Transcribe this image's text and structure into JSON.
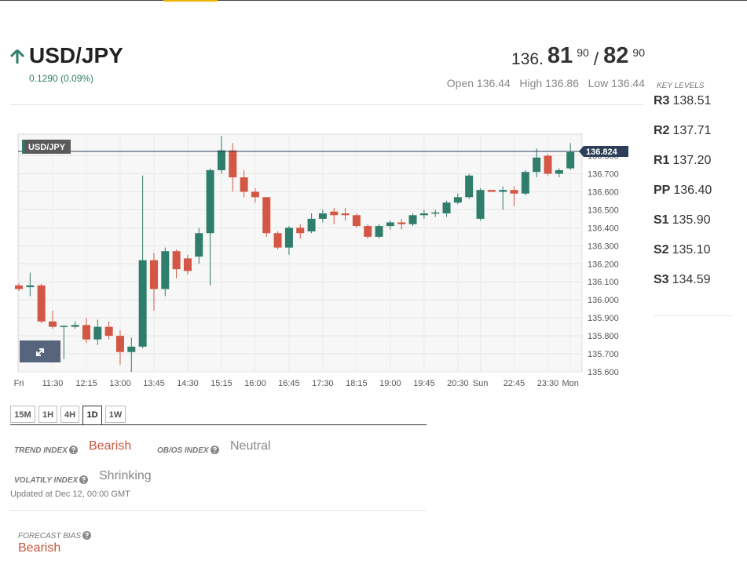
{
  "header": {
    "symbol": "USD/JPY",
    "change": "0.1290 (0.09%)",
    "bid": {
      "prefix": "136.",
      "pips": "81",
      "fraction": "90"
    },
    "separator": "/",
    "ask": {
      "pips": "82",
      "fraction": "90"
    },
    "open": "Open 136.44",
    "high": "High 136.86",
    "low": "Low 136.44"
  },
  "key_levels": {
    "title": "KEY LEVELS",
    "levels": [
      {
        "name": "R3",
        "value": "138.51"
      },
      {
        "name": "R2",
        "value": "137.71"
      },
      {
        "name": "R1",
        "value": "137.20"
      },
      {
        "name": "PP",
        "value": "136.40"
      },
      {
        "name": "S1",
        "value": "135.90"
      },
      {
        "name": "S2",
        "value": "135.10"
      },
      {
        "name": "S3",
        "value": "134.59"
      }
    ]
  },
  "chart_data": {
    "type": "candlestick",
    "label": "USD/JPY",
    "current": 136.824,
    "up_color": "#2f7d6b",
    "down_color": "#d35744",
    "grid": true,
    "categories": [
      "Fri",
      null,
      null,
      "11:30",
      null,
      null,
      "12:15",
      null,
      null,
      "13:00",
      null,
      null,
      "13:45",
      null,
      null,
      "14:30",
      null,
      null,
      "15:15",
      null,
      null,
      "16:00",
      null,
      null,
      "16:45",
      null,
      null,
      "17:30",
      null,
      null,
      "18:15",
      null,
      null,
      "19:00",
      null,
      null,
      "19:45",
      null,
      null,
      "20:30",
      null,
      "Sun",
      null,
      null,
      "22:45",
      null,
      null,
      "23:30",
      null,
      "Mon"
    ],
    "open": [
      136.08,
      136.07,
      136.08,
      135.88,
      135.85,
      135.85,
      135.86,
      135.78,
      135.85,
      135.8,
      135.71,
      135.74,
      136.22,
      136.06,
      136.27,
      136.23,
      136.24,
      136.37,
      136.72,
      136.83,
      136.68,
      136.6,
      136.57,
      136.37,
      136.29,
      136.4,
      136.38,
      136.45,
      136.49,
      136.48,
      136.47,
      136.41,
      136.35,
      136.41,
      136.43,
      136.42,
      136.47,
      136.48,
      136.48,
      136.54,
      136.57,
      136.45,
      136.61,
      136.6,
      136.61,
      136.59,
      136.71,
      136.8,
      136.7,
      136.73
    ],
    "high": [
      136.09,
      136.15,
      136.09,
      135.94,
      135.86,
      135.88,
      135.9,
      135.89,
      135.88,
      135.83,
      135.79,
      136.69,
      136.26,
      136.29,
      136.28,
      136.25,
      136.4,
      136.73,
      136.91,
      136.87,
      136.72,
      136.62,
      136.57,
      136.38,
      136.41,
      136.42,
      136.48,
      136.5,
      136.51,
      136.51,
      136.48,
      136.42,
      136.42,
      136.44,
      136.45,
      136.48,
      136.5,
      136.5,
      136.55,
      136.59,
      136.7,
      136.62,
      136.61,
      136.63,
      136.63,
      136.72,
      136.84,
      136.81,
      136.73,
      136.87
    ],
    "low": [
      136.05,
      136.02,
      135.87,
      135.84,
      135.67,
      135.84,
      135.76,
      135.75,
      135.78,
      135.64,
      135.6,
      135.73,
      135.94,
      136.02,
      136.12,
      136.14,
      136.2,
      136.08,
      136.7,
      136.6,
      136.57,
      136.54,
      136.35,
      136.28,
      136.25,
      136.34,
      136.37,
      136.43,
      136.42,
      136.44,
      136.4,
      136.34,
      136.34,
      136.39,
      136.39,
      136.41,
      136.45,
      136.46,
      136.46,
      136.53,
      136.56,
      136.44,
      136.6,
      136.5,
      136.52,
      136.58,
      136.68,
      136.69,
      136.68,
      136.72
    ],
    "close": [
      136.06,
      136.08,
      135.88,
      135.85,
      135.855,
      135.86,
      135.78,
      135.85,
      135.8,
      135.71,
      135.74,
      136.22,
      136.06,
      136.27,
      136.17,
      136.16,
      136.37,
      136.72,
      136.83,
      136.68,
      136.6,
      136.57,
      136.37,
      136.29,
      136.4,
      136.37,
      136.45,
      136.48,
      136.47,
      136.47,
      136.41,
      136.35,
      136.41,
      136.43,
      136.42,
      136.47,
      136.48,
      136.485,
      136.54,
      136.57,
      136.69,
      136.61,
      136.6,
      136.61,
      136.59,
      136.71,
      136.79,
      136.7,
      136.72,
      136.82
    ],
    "ylim": [
      135.6,
      136.92
    ],
    "yticks": [
      {
        "value": 135.6,
        "label": "135.600"
      },
      {
        "value": 135.7,
        "label": "135.700"
      },
      {
        "value": 135.8,
        "label": "135.800"
      },
      {
        "value": 135.9,
        "label": "135.900"
      },
      {
        "value": 136.0,
        "label": "136.000"
      },
      {
        "value": 136.1,
        "label": "136.100"
      },
      {
        "value": 136.2,
        "label": "136.200"
      },
      {
        "value": 136.3,
        "label": "136.300"
      },
      {
        "value": 136.4,
        "label": "136.400"
      },
      {
        "value": 136.5,
        "label": "136.500"
      },
      {
        "value": 136.6,
        "label": "136.600"
      },
      {
        "value": 136.7,
        "label": "136.700"
      },
      {
        "value": 136.8,
        "label": "136.800"
      }
    ]
  },
  "timeframes": {
    "tabs": [
      "15M",
      "1H",
      "4H",
      "1D",
      "1W"
    ],
    "active": 3
  },
  "indexes": {
    "trend_label": "TREND INDEX",
    "trend_value": "Bearish",
    "obos_label": "OB/OS INDEX",
    "obos_value": "Neutral",
    "volatility_label": "VOLATILY INDEX",
    "volatility_value": "Shrinking"
  },
  "updated": "Updated at Dec 12, 00:00 GMT",
  "forecast": {
    "label": "FORECAST BIAS",
    "value": "Bearish"
  }
}
